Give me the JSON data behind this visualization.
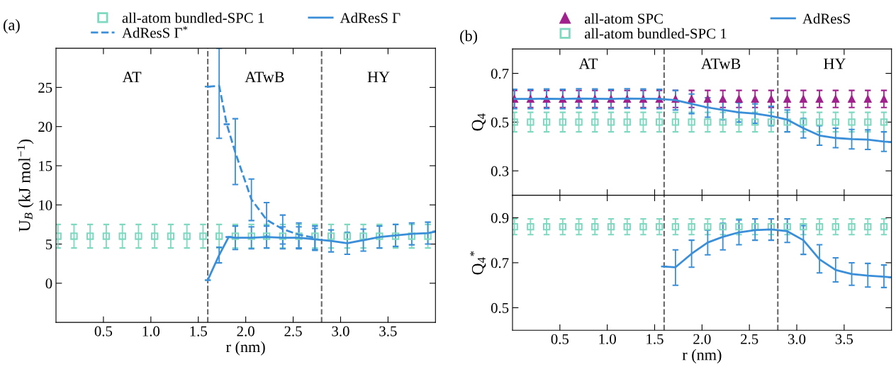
{
  "chart_data": [
    {
      "type": "line",
      "title": "(a)",
      "xlabel": "r (nm)",
      "ylabel": "U$_{B}$ (kJ mol$^{−1}$)",
      "xlim": [
        0,
        4.0
      ],
      "xticks": [
        0.5,
        {
          "value": 1,
          "label": "1.0"
        },
        1.5,
        {
          "value": 2,
          "label": "2.0"
        },
        2.5,
        {
          "value": 3,
          "label": "3.0"
        },
        3.5
      ],
      "ylim": [
        -5,
        30
      ],
      "yticks": [
        0,
        5,
        10,
        15,
        20,
        25
      ],
      "grid": false,
      "legend": "top",
      "ref_lines": [
        {
          "axis": "x",
          "value": 1.6,
          "color": "#666666",
          "line_style": "dashed"
        },
        {
          "axis": "x",
          "value": 2.8,
          "color": "#666666",
          "line_style": "dashed"
        }
      ],
      "annotations": [
        "AT",
        "ATwB",
        "HY"
      ],
      "series": [
        {
          "name": "all-atom bundled-SPC 1",
          "type": "scatter",
          "color": "#7fd8c0",
          "marker": "square",
          "x": [
            0.02,
            0.19,
            0.36,
            0.53,
            0.7,
            0.87,
            1.04,
            1.21,
            1.38,
            1.55,
            1.72,
            1.89,
            2.06,
            2.22,
            2.39,
            2.56,
            2.73,
            2.9,
            3.07,
            3.24,
            3.41,
            3.58,
            3.75,
            3.92
          ],
          "values": [
            6.0,
            6.0,
            6.0,
            6.0,
            6.0,
            6.0,
            6.0,
            6.0,
            6.0,
            6.0,
            6.0,
            6.0,
            6.0,
            6.0,
            6.0,
            6.0,
            6.0,
            6.0,
            6.0,
            6.0,
            6.0,
            6.0,
            6.0,
            6.0
          ],
          "errors": [
            1.5,
            1.5,
            1.5,
            1.5,
            1.5,
            1.5,
            1.5,
            1.5,
            1.5,
            1.5,
            1.5,
            1.5,
            1.5,
            1.5,
            1.5,
            1.5,
            1.5,
            1.5,
            1.5,
            1.5,
            1.5,
            1.5,
            1.5,
            1.5
          ]
        },
        {
          "name": "AdResS Γ$^{*}$",
          "color": "#3a8fd8",
          "line_style": "dashed",
          "x": [
            1.6,
            1.72,
            1.8,
            1.89,
            2.06,
            2.22,
            2.39,
            2.56,
            2.73
          ],
          "values": [
            25.1,
            25.2,
            20.3,
            16.7,
            10.7,
            8.1,
            6.9,
            6.2,
            5.8
          ],
          "errors": [
            null,
            [
              18.5,
              30
            ],
            null,
            [
              12.6,
              21
            ],
            [
              8,
              13.3
            ],
            [
              6,
              10.3
            ],
            [
              5,
              8.7
            ],
            [
              4.5,
              7.7
            ],
            [
              4.3,
              7.3
            ]
          ]
        },
        {
          "name": "AdResS Γ",
          "color": "#3a8fd8",
          "line_style": "solid",
          "x": [
            1.6,
            1.72,
            1.82,
            1.89,
            2.06,
            2.22,
            2.39,
            2.56,
            2.73,
            2.9,
            3.07,
            3.24,
            3.41,
            3.58,
            3.75,
            3.92,
            4.0
          ],
          "values": [
            0.4,
            3.6,
            5.9,
            5.8,
            5.8,
            5.9,
            5.8,
            5.8,
            5.6,
            5.4,
            5.1,
            5.5,
            5.9,
            6.1,
            6.3,
            6.4,
            6.6
          ],
          "errors": [
            null,
            [
              2.6,
              4.6
            ],
            null,
            1.5,
            1.4,
            1.4,
            1.4,
            1.4,
            1.4,
            1.4,
            1.4,
            1.4,
            1.4,
            1.4,
            1.4,
            1.4,
            null
          ]
        }
      ]
    },
    {
      "type": "line",
      "title": "(b)",
      "ylabel": "Q$_{4}$",
      "tick_labels": "y",
      "xlim": [
        0,
        4.0
      ],
      "ylim": [
        0.2,
        0.8
      ],
      "yticks": [
        0.3,
        0.5,
        0.7
      ],
      "grid": false,
      "legend": "top",
      "ref_lines": [
        {
          "axis": "x",
          "value": 1.6,
          "color": "#666666",
          "line_style": "dashed"
        },
        {
          "axis": "x",
          "value": 2.8,
          "color": "#666666",
          "line_style": "dashed"
        }
      ],
      "annotations": [
        "AT",
        "ATwB",
        "HY"
      ],
      "series": [
        {
          "name": "all-atom SPC",
          "type": "scatter",
          "color": "#a0228c",
          "marker": "triangle",
          "x": [
            0.02,
            0.19,
            0.36,
            0.53,
            0.7,
            0.87,
            1.04,
            1.21,
            1.38,
            1.55,
            1.72,
            1.89,
            2.06,
            2.22,
            2.39,
            2.56,
            2.73,
            2.9,
            3.07,
            3.24,
            3.41,
            3.58,
            3.75,
            3.92
          ],
          "values": [
            0.595,
            0.595,
            0.595,
            0.595,
            0.595,
            0.595,
            0.595,
            0.595,
            0.595,
            0.595,
            0.595,
            0.595,
            0.595,
            0.595,
            0.595,
            0.595,
            0.595,
            0.595,
            0.595,
            0.595,
            0.595,
            0.595,
            0.595,
            0.595
          ],
          "errors": [
            0.035,
            0.035,
            0.035,
            0.035,
            0.035,
            0.035,
            0.035,
            0.035,
            0.035,
            0.035,
            0.035,
            0.035,
            0.035,
            0.035,
            0.035,
            0.035,
            0.035,
            0.035,
            0.035,
            0.035,
            0.035,
            0.035,
            0.035,
            0.035
          ]
        },
        {
          "name": "all-atom bundled-SPC 1",
          "type": "scatter",
          "color": "#7fd8c0",
          "marker": "square",
          "x": [
            0.02,
            0.19,
            0.36,
            0.53,
            0.7,
            0.87,
            1.04,
            1.21,
            1.38,
            1.55,
            1.72,
            1.89,
            2.06,
            2.22,
            2.39,
            2.56,
            2.73,
            2.9,
            3.07,
            3.24,
            3.41,
            3.58,
            3.75,
            3.92
          ],
          "values": [
            0.5,
            0.5,
            0.5,
            0.5,
            0.5,
            0.5,
            0.5,
            0.5,
            0.5,
            0.5,
            0.5,
            0.5,
            0.5,
            0.5,
            0.5,
            0.5,
            0.5,
            0.5,
            0.5,
            0.5,
            0.5,
            0.5,
            0.5,
            0.5
          ],
          "errors": [
            0.04,
            0.04,
            0.04,
            0.04,
            0.04,
            0.04,
            0.04,
            0.04,
            0.04,
            0.04,
            0.04,
            0.04,
            0.04,
            0.04,
            0.04,
            0.04,
            0.04,
            0.04,
            0.04,
            0.04,
            0.04,
            0.04,
            0.04,
            0.04
          ]
        },
        {
          "name": "AdResS",
          "color": "#3a8fd8",
          "line_style": "solid",
          "x": [
            0.02,
            0.19,
            0.36,
            0.53,
            0.7,
            0.87,
            1.04,
            1.21,
            1.38,
            1.55,
            1.72,
            1.89,
            2.06,
            2.22,
            2.39,
            2.56,
            2.73,
            2.9,
            3.07,
            3.24,
            3.41,
            3.58,
            3.75,
            3.92,
            4.0
          ],
          "values": [
            0.595,
            0.595,
            0.596,
            0.595,
            0.597,
            0.596,
            0.595,
            0.597,
            0.596,
            0.595,
            0.59,
            0.575,
            0.56,
            0.55,
            0.54,
            0.535,
            0.525,
            0.51,
            0.475,
            0.445,
            0.435,
            0.43,
            0.428,
            0.42,
            0.418
          ],
          "errors": [
            0.04,
            0.04,
            0.04,
            0.04,
            0.04,
            0.04,
            0.04,
            0.04,
            0.04,
            0.04,
            0.04,
            0.04,
            0.04,
            0.04,
            0.04,
            0.04,
            0.04,
            [
              0.46,
              0.55
            ],
            0.04,
            0.04,
            0.04,
            0.04,
            0.04,
            0.04,
            null
          ]
        }
      ]
    },
    {
      "type": "line",
      "xlabel": "r (nm)",
      "ylabel": "Q$_{4}$$^{*}$",
      "xlim": [
        0,
        4.0
      ],
      "xticks": [
        0.5,
        {
          "value": 1,
          "label": "1.0"
        },
        1.5,
        {
          "value": 2,
          "label": "2.0"
        },
        2.5,
        {
          "value": 3,
          "label": "3.0"
        },
        3.5
      ],
      "ylim": [
        0.4,
        1.0
      ],
      "yticks": [
        0.5,
        0.7,
        0.9
      ],
      "grid": false,
      "ref_lines": [
        {
          "axis": "x",
          "value": 1.6,
          "color": "#666666",
          "line_style": "dashed"
        },
        {
          "axis": "x",
          "value": 2.8,
          "color": "#666666",
          "line_style": "dashed"
        }
      ],
      "series": [
        {
          "type": "scatter",
          "color": "#7fd8c0",
          "marker": "square",
          "x": [
            0.02,
            0.19,
            0.36,
            0.53,
            0.7,
            0.87,
            1.04,
            1.21,
            1.38,
            1.55,
            1.72,
            1.89,
            2.06,
            2.22,
            2.39,
            2.56,
            2.73,
            2.9,
            3.07,
            3.24,
            3.41,
            3.58,
            3.75,
            3.92
          ],
          "values": [
            0.86,
            0.86,
            0.86,
            0.86,
            0.86,
            0.86,
            0.86,
            0.86,
            0.86,
            0.86,
            0.86,
            0.86,
            0.86,
            0.86,
            0.86,
            0.86,
            0.86,
            0.86,
            0.86,
            0.86,
            0.86,
            0.86,
            0.86,
            0.86
          ],
          "errors": [
            0.035,
            0.035,
            0.035,
            0.035,
            0.035,
            0.035,
            0.035,
            0.035,
            0.035,
            0.035,
            0.035,
            0.035,
            0.035,
            0.035,
            0.035,
            0.035,
            0.035,
            0.035,
            0.035,
            0.035,
            0.035,
            0.035,
            0.035,
            0.035
          ]
        },
        {
          "color": "#3a8fd8",
          "line_style": "solid",
          "x": [
            1.6,
            1.72,
            1.89,
            2.06,
            2.22,
            2.39,
            2.56,
            2.73,
            2.9,
            3.07,
            3.24,
            3.41,
            3.58,
            3.75,
            3.92,
            4.0
          ],
          "values": [
            0.683,
            0.68,
            0.74,
            0.79,
            0.815,
            0.835,
            0.845,
            0.848,
            0.84,
            0.8,
            0.715,
            0.668,
            0.65,
            0.643,
            0.638,
            0.635
          ],
          "errors": [
            null,
            [
              0.6,
              0.757
            ],
            [
              0.68,
              0.8
            ],
            [
              0.735,
              0.845
            ],
            [
              0.757,
              0.875
            ],
            [
              0.78,
              0.89
            ],
            [
              0.8,
              0.895
            ],
            [
              0.8,
              0.895
            ],
            [
              0.79,
              0.895
            ],
            [
              0.737,
              0.865
            ],
            [
              0.655,
              0.78
            ],
            [
              0.615,
              0.722
            ],
            [
              0.6,
              0.7
            ],
            [
              0.592,
              0.697
            ],
            [
              0.59,
              0.69
            ],
            null
          ]
        }
      ]
    }
  ]
}
